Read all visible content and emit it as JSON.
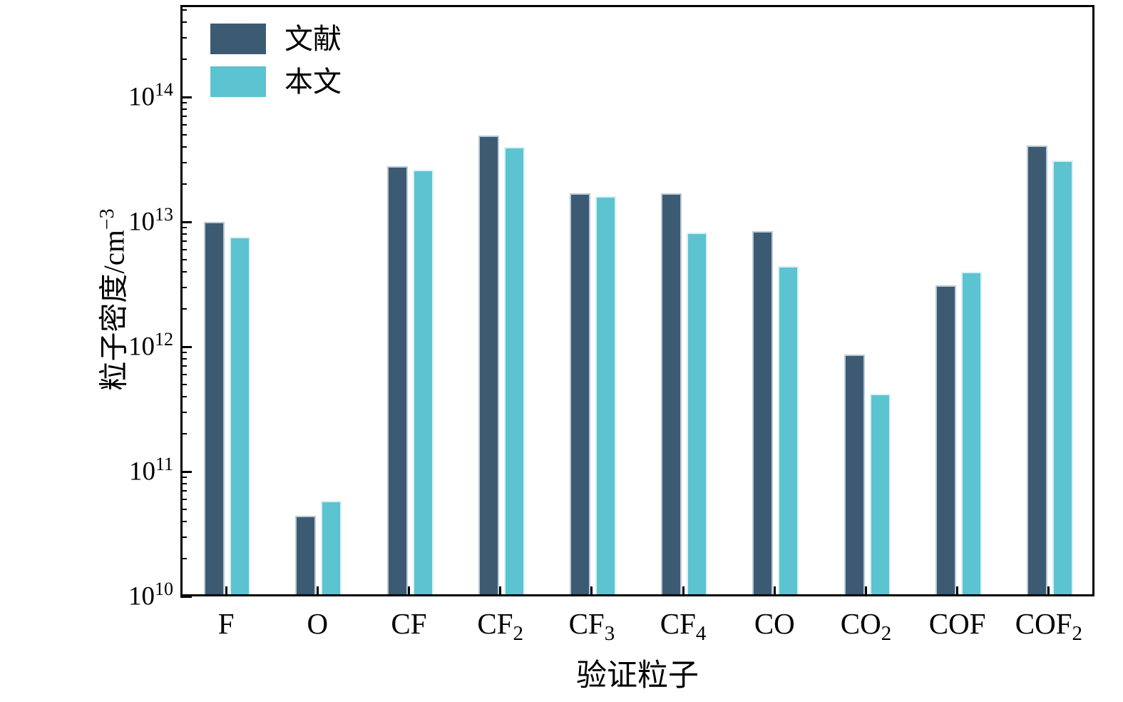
{
  "chart_data": {
    "type": "bar",
    "title": "",
    "xlabel": "验证粒子",
    "ylabel": "粒子密度/cm⁻³",
    "ylabel_parts": {
      "main": "粒子密度/cm",
      "sup": "−3"
    },
    "y_scale": "log",
    "ylim": [
      10000000000.0,
      550000000000000.0
    ],
    "y_tick_exponents": [
      10,
      11,
      12,
      13,
      14
    ],
    "grid": false,
    "legend_position": "top-left-inside",
    "categories": [
      "F",
      "O",
      "CF",
      "CF_2",
      "CF_3",
      "CF_4",
      "CO",
      "CO_2",
      "COF",
      "COF_2"
    ],
    "series": [
      {
        "name": "文献",
        "color": "#3d5a73",
        "edge_color": "#b9c9d6",
        "values": [
          10000000000000.0,
          44000000000.0,
          28000000000000.0,
          49000000000000.0,
          17000000000000.0,
          17000000000000.0,
          8400000000000.0,
          860000000000.0,
          3100000000000.0,
          41000000000000.0
        ]
      },
      {
        "name": "本文",
        "color": "#5cc3d1",
        "edge_color": "#d9f1f4",
        "values": [
          7600000000000.0,
          58000000000.0,
          26000000000000.0,
          40000000000000.0,
          16000000000000.0,
          8200000000000.0,
          4400000000000.0,
          420000000000.0,
          4000000000000.0,
          31000000000000.0
        ]
      }
    ],
    "axis_color": "#000000",
    "background_color": "#ffffff"
  }
}
